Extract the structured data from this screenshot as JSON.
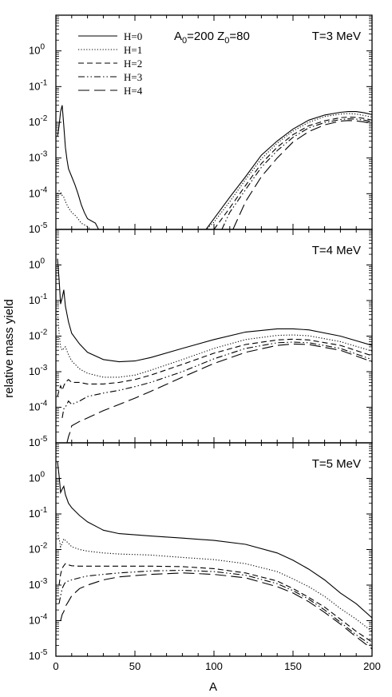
{
  "chart_data": [
    {
      "type": "line",
      "annotation": "A0=200 Z0=80",
      "temperature_label": "T=3 MeV",
      "xlim": [
        0,
        200
      ],
      "ylim": [
        1e-05,
        10
      ],
      "yscale": "log",
      "legend": {
        "placement": "top-left",
        "entries": [
          "H=0",
          "H=1",
          "H=2",
          "H=3",
          "H=4"
        ]
      },
      "series": [
        {
          "name": "H=0",
          "x": [
            1,
            2,
            3,
            4,
            5,
            6,
            7,
            8,
            10,
            12,
            14,
            16,
            18,
            20,
            25,
            27,
            95,
            100,
            110,
            120,
            130,
            140,
            150,
            160,
            170,
            180,
            185,
            190,
            195,
            200
          ],
          "y": [
            0.004,
            0.008,
            0.02,
            0.03,
            0.008,
            0.002,
            0.0009,
            0.0005,
            0.0003,
            0.00018,
            0.0001,
            5e-05,
            3e-05,
            2e-05,
            1.5e-05,
            1e-05,
            1e-05,
            2e-05,
            8e-05,
            0.0003,
            0.0012,
            0.003,
            0.0065,
            0.0115,
            0.016,
            0.019,
            0.02,
            0.02,
            0.0185,
            0.0165
          ]
        },
        {
          "name": "H=1",
          "x": [
            1,
            2,
            3,
            4,
            5,
            6,
            8,
            10,
            12,
            14,
            16,
            20,
            22,
            95,
            100,
            110,
            120,
            130,
            140,
            150,
            160,
            170,
            180,
            185,
            190,
            195,
            200
          ],
          "y": [
            0.0001,
            0.00012,
            0.00011,
            9e-05,
            8e-05,
            6e-05,
            4e-05,
            3e-05,
            2.5e-05,
            2e-05,
            1.5e-05,
            1.2e-05,
            1e-05,
            1e-05,
            1.6e-05,
            6e-05,
            0.00025,
            0.00095,
            0.0026,
            0.0057,
            0.01,
            0.0145,
            0.017,
            0.0175,
            0.017,
            0.0155,
            0.014
          ]
        },
        {
          "name": "H=2",
          "x": [
            100,
            105,
            110,
            120,
            130,
            140,
            150,
            160,
            170,
            180,
            185,
            190,
            195,
            200
          ],
          "y": [
            1e-05,
            2e-05,
            4e-05,
            0.00017,
            0.0007,
            0.002,
            0.0045,
            0.008,
            0.011,
            0.0135,
            0.014,
            0.0138,
            0.0128,
            0.0115
          ]
        },
        {
          "name": "H=3",
          "x": [
            105,
            110,
            120,
            130,
            140,
            150,
            160,
            170,
            180,
            185,
            190,
            195,
            200
          ],
          "y": [
            1e-05,
            3e-05,
            0.00013,
            0.00055,
            0.0016,
            0.0038,
            0.007,
            0.0098,
            0.012,
            0.0125,
            0.0123,
            0.0115,
            0.0105
          ]
        },
        {
          "name": "H=4",
          "x": [
            112,
            120,
            130,
            140,
            150,
            160,
            170,
            180,
            185,
            190,
            195,
            200
          ],
          "y": [
            1e-05,
            6e-05,
            0.0003,
            0.001,
            0.0028,
            0.0055,
            0.0085,
            0.0108,
            0.0112,
            0.011,
            0.0102,
            0.0092
          ]
        }
      ]
    },
    {
      "type": "line",
      "temperature_label": "T=4 MeV",
      "xlim": [
        0,
        200
      ],
      "ylim": [
        1e-05,
        10
      ],
      "yscale": "log",
      "series": [
        {
          "name": "H=0",
          "x": [
            1,
            2,
            3,
            4,
            5,
            6,
            8,
            10,
            15,
            20,
            30,
            40,
            50,
            60,
            80,
            100,
            120,
            140,
            150,
            160,
            180,
            200
          ],
          "y": [
            1.5,
            0.4,
            0.08,
            0.12,
            0.2,
            0.07,
            0.025,
            0.012,
            0.006,
            0.0035,
            0.0022,
            0.0019,
            0.002,
            0.0025,
            0.0045,
            0.008,
            0.013,
            0.016,
            0.016,
            0.015,
            0.01,
            0.0055
          ]
        },
        {
          "name": "H=1",
          "x": [
            1,
            2,
            3,
            4,
            5,
            6,
            8,
            10,
            15,
            20,
            30,
            40,
            50,
            60,
            80,
            100,
            120,
            140,
            150,
            160,
            180,
            200
          ],
          "y": [
            0.05,
            0.012,
            0.005,
            0.004,
            0.0045,
            0.005,
            0.003,
            0.002,
            0.0012,
            0.0009,
            0.0007,
            0.0007,
            0.0008,
            0.0011,
            0.0022,
            0.0045,
            0.008,
            0.0105,
            0.0108,
            0.0102,
            0.007,
            0.0038
          ]
        },
        {
          "name": "H=2",
          "x": [
            1,
            2,
            3,
            4,
            5,
            6,
            8,
            10,
            15,
            20,
            30,
            40,
            50,
            60,
            80,
            100,
            120,
            140,
            150,
            160,
            180,
            200
          ],
          "y": [
            0.0002,
            0.0003,
            0.0004,
            0.0003,
            0.0004,
            0.0005,
            0.0006,
            0.0005,
            0.0005,
            0.00045,
            0.00045,
            0.0005,
            0.0006,
            0.0008,
            0.0016,
            0.0033,
            0.0058,
            0.0078,
            0.0082,
            0.0078,
            0.0055,
            0.0028
          ]
        },
        {
          "name": "H=3",
          "x": [
            4,
            5,
            6,
            8,
            10,
            15,
            20,
            30,
            40,
            50,
            60,
            80,
            100,
            120,
            140,
            150,
            160,
            180,
            200
          ],
          "y": [
            5e-05,
            9e-05,
            0.0001,
            0.00015,
            0.00012,
            0.00015,
            0.0002,
            0.00025,
            0.0003,
            0.00038,
            0.0005,
            0.001,
            0.0023,
            0.0045,
            0.0065,
            0.0068,
            0.0065,
            0.0045,
            0.0022
          ]
        },
        {
          "name": "H=4",
          "x": [
            7,
            8,
            9,
            10,
            15,
            20,
            30,
            40,
            50,
            60,
            80,
            100,
            120,
            140,
            150,
            160,
            180,
            200
          ],
          "y": [
            1e-05,
            1.5e-05,
            2e-05,
            3e-05,
            4e-05,
            5e-05,
            8e-05,
            0.00012,
            0.00018,
            0.00028,
            0.0007,
            0.0017,
            0.0035,
            0.0055,
            0.006,
            0.0058,
            0.004,
            0.0019
          ]
        }
      ]
    },
    {
      "type": "line",
      "temperature_label": "T=5 MeV",
      "xlabel": "A",
      "ylabel": "relative mass yield",
      "xlim": [
        0,
        200
      ],
      "ylim": [
        1e-05,
        10
      ],
      "yscale": "log",
      "xticks": [
        0,
        50,
        100,
        150,
        200
      ],
      "series": [
        {
          "name": "H=0",
          "x": [
            1,
            2,
            3,
            4,
            5,
            6,
            8,
            10,
            15,
            20,
            30,
            40,
            60,
            80,
            100,
            120,
            140,
            150,
            160,
            170,
            180,
            190,
            200
          ],
          "y": [
            3,
            1.2,
            0.4,
            0.5,
            0.6,
            0.35,
            0.2,
            0.15,
            0.09,
            0.06,
            0.035,
            0.028,
            0.024,
            0.021,
            0.018,
            0.014,
            0.008,
            0.005,
            0.0028,
            0.0014,
            0.0006,
            0.0003,
            0.00012
          ]
        },
        {
          "name": "H=1",
          "x": [
            1,
            2,
            3,
            4,
            5,
            6,
            8,
            10,
            15,
            20,
            30,
            40,
            60,
            80,
            100,
            120,
            140,
            150,
            160,
            170,
            180,
            190,
            200
          ],
          "y": [
            0.03,
            0.02,
            0.012,
            0.015,
            0.02,
            0.018,
            0.015,
            0.012,
            0.01,
            0.009,
            0.008,
            0.0075,
            0.007,
            0.006,
            0.0052,
            0.004,
            0.0024,
            0.0015,
            0.0009,
            0.00048,
            0.00022,
            0.00011,
            5e-05
          ]
        },
        {
          "name": "H=2",
          "x": [
            2,
            3,
            4,
            5,
            6,
            8,
            10,
            15,
            20,
            30,
            40,
            60,
            80,
            100,
            120,
            140,
            150,
            160,
            170,
            180,
            190,
            200
          ],
          "y": [
            0.001,
            0.002,
            0.003,
            0.0035,
            0.004,
            0.0037,
            0.0035,
            0.0034,
            0.0034,
            0.0034,
            0.0034,
            0.0034,
            0.0033,
            0.0029,
            0.0022,
            0.0013,
            0.0008,
            0.00045,
            0.00024,
            0.00011,
            5e-05,
            2.5e-05
          ]
        },
        {
          "name": "H=3",
          "x": [
            2,
            3,
            4,
            5,
            6,
            8,
            10,
            15,
            20,
            30,
            40,
            60,
            80,
            100,
            120,
            140,
            150,
            160,
            170,
            180,
            190,
            200
          ],
          "y": [
            0.0003,
            0.0005,
            0.0008,
            0.001,
            0.0012,
            0.0013,
            0.0014,
            0.0016,
            0.0018,
            0.002,
            0.0022,
            0.0025,
            0.0026,
            0.0024,
            0.0019,
            0.0011,
            0.0007,
            0.0004,
            0.0002,
            9e-05,
            4e-05,
            2e-05
          ]
        },
        {
          "name": "H=4",
          "x": [
            3,
            4,
            5,
            6,
            8,
            10,
            15,
            20,
            30,
            40,
            60,
            80,
            100,
            120,
            140,
            150,
            160,
            170,
            180,
            190,
            200
          ],
          "y": [
            0.0001,
            0.00015,
            0.00018,
            0.00025,
            0.00035,
            0.0005,
            0.0008,
            0.001,
            0.0014,
            0.0017,
            0.002,
            0.0022,
            0.002,
            0.0016,
            0.0009,
            0.0006,
            0.00034,
            0.00017,
            8e-05,
            3.5e-05,
            1.6e-05
          ]
        }
      ]
    }
  ]
}
